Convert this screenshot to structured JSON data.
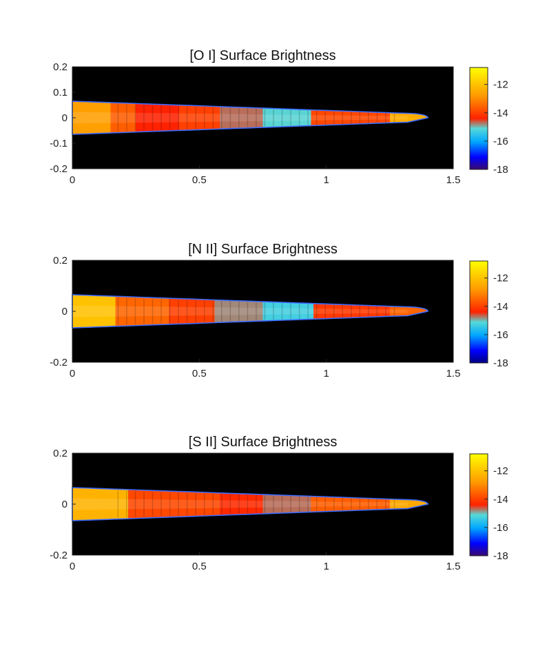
{
  "chart_data": [
    {
      "type": "heatmap",
      "title": "[O I] Surface Brightness",
      "xlim": [
        0,
        1.5
      ],
      "ylim": [
        -0.2,
        0.2
      ],
      "xticks": [
        "0",
        "0.5",
        "1",
        "1.5"
      ],
      "yticks": [
        "0.2",
        "0.1",
        "0",
        "-0.1",
        "-0.2"
      ],
      "colorbar": {
        "range": [
          -18,
          -10.8
        ],
        "ticks": [
          "-12",
          "-14",
          "-16",
          "-18"
        ]
      },
      "jet": {
        "length": 1.4,
        "half_width_base": 0.065,
        "segments": [
          {
            "x": [
              0.0,
              0.15
            ],
            "level": -12.7
          },
          {
            "x": [
              0.15,
              0.25
            ],
            "level": -13.6
          },
          {
            "x": [
              0.25,
              0.42
            ],
            "level": -14.4
          },
          {
            "x": [
              0.42,
              0.58
            ],
            "level": -14.0
          },
          {
            "x": [
              0.58,
              0.75
            ],
            "level": -14.7
          },
          {
            "x": [
              0.75,
              0.94
            ],
            "level": -15.1
          },
          {
            "x": [
              0.94,
              1.25
            ],
            "level": -13.9
          },
          {
            "x": [
              1.25,
              1.4
            ],
            "level": -12.4
          }
        ]
      }
    },
    {
      "type": "heatmap",
      "title": "[N II] Surface Brightness",
      "xlim": [
        0,
        1.5
      ],
      "ylim": [
        -0.2,
        0.2
      ],
      "xticks": [
        "0",
        "0.5",
        "1",
        "1.5"
      ],
      "yticks": [
        "0.2",
        "0",
        "-0.2"
      ],
      "colorbar": {
        "range": [
          -18,
          -10.8
        ],
        "ticks": [
          "-12",
          "-14",
          "-16",
          "-18"
        ]
      },
      "jet": {
        "length": 1.4,
        "half_width_base": 0.065,
        "segments": [
          {
            "x": [
              0.0,
              0.17
            ],
            "level": -12.0
          },
          {
            "x": [
              0.17,
              0.38
            ],
            "level": -13.5
          },
          {
            "x": [
              0.38,
              0.56
            ],
            "level": -14.0
          },
          {
            "x": [
              0.56,
              0.75
            ],
            "level": -14.8
          },
          {
            "x": [
              0.75,
              0.95
            ],
            "level": -15.3
          },
          {
            "x": [
              0.95,
              1.25
            ],
            "level": -14.1
          },
          {
            "x": [
              1.25,
              1.4
            ],
            "level": -13.5
          }
        ]
      }
    },
    {
      "type": "heatmap",
      "title": "[S II] Surface Brightness",
      "xlim": [
        0,
        1.5
      ],
      "ylim": [
        -0.2,
        0.2
      ],
      "xticks": [
        "0",
        "0.5",
        "1",
        "1.5"
      ],
      "yticks": [
        "0.2",
        "0",
        "-0.2"
      ],
      "colorbar": {
        "range": [
          -18,
          -10.8
        ],
        "ticks": [
          "-12",
          "-14",
          "-16",
          "-18"
        ]
      },
      "jet": {
        "length": 1.4,
        "half_width_base": 0.065,
        "segments": [
          {
            "x": [
              0.0,
              0.22
            ],
            "level": -12.3
          },
          {
            "x": [
              0.22,
              0.58
            ],
            "level": -13.9
          },
          {
            "x": [
              0.58,
              0.75
            ],
            "level": -14.3
          },
          {
            "x": [
              0.75,
              0.94
            ],
            "level": -14.7
          },
          {
            "x": [
              0.94,
              1.25
            ],
            "level": -13.6
          },
          {
            "x": [
              1.25,
              1.4
            ],
            "level": -12.5
          }
        ]
      }
    }
  ]
}
